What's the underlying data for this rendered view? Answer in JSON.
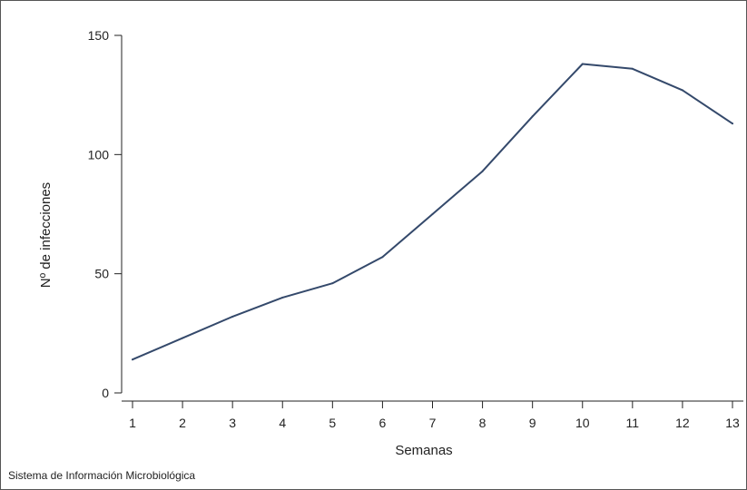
{
  "chart_data": {
    "type": "line",
    "title": "",
    "xlabel": "Semanas",
    "ylabel": "Nº de infecciones",
    "x": [
      1,
      2,
      3,
      4,
      5,
      6,
      7,
      8,
      9,
      10,
      11,
      12,
      13
    ],
    "x_tick_labels": [
      "1",
      "2",
      "3",
      "4",
      "5",
      "6",
      "7",
      "8",
      "9",
      "10",
      "11",
      "12",
      "13"
    ],
    "y_ticks": [
      0,
      50,
      100,
      150
    ],
    "y_tick_labels": [
      "0",
      "50",
      "100",
      "150"
    ],
    "xlim": [
      1,
      13
    ],
    "ylim": [
      0,
      150
    ],
    "grid": false,
    "legend": "none",
    "series": [
      {
        "values": [
          14,
          23,
          32,
          40,
          46,
          57,
          75,
          93,
          116,
          138,
          136,
          127,
          113
        ],
        "color": "#34496b"
      }
    ]
  },
  "source_note": "Sistema de Información Microbiológica"
}
